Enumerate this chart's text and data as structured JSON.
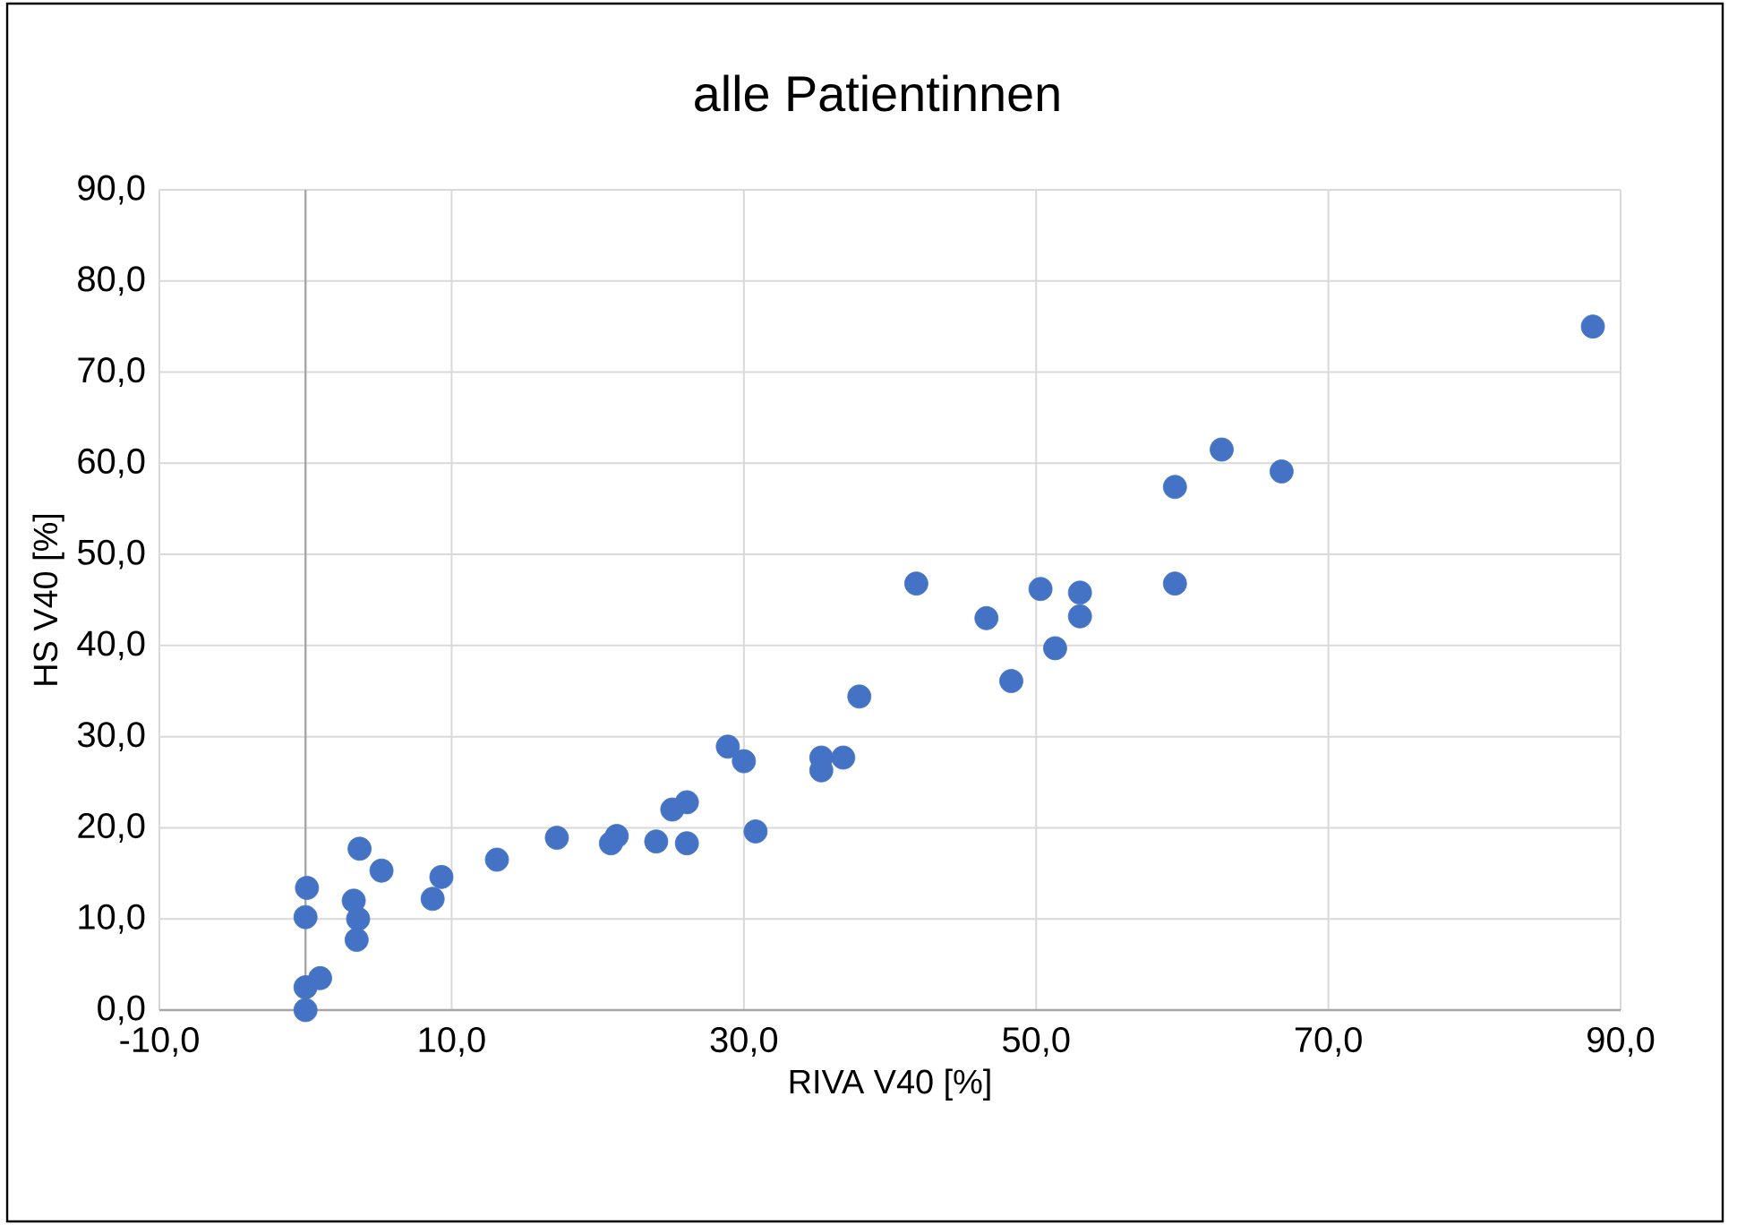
{
  "chart_data": {
    "type": "scatter",
    "title": "alle Patientinnen",
    "xlabel": "RIVA V40 [%]",
    "ylabel": "HS V40 [%]",
    "x": [
      0,
      0,
      1,
      0,
      0.1,
      3.3,
      3.6,
      3.5,
      3.7,
      5.2,
      8.7,
      9.3,
      13.1,
      17.2,
      20.9,
      21.3,
      24,
      25.1,
      26.1,
      26.1,
      28.9,
      30,
      30.8,
      35.3,
      35.3,
      36.8,
      37.9,
      41.8,
      46.6,
      48.3,
      50.3,
      51.3,
      53,
      53,
      59.5,
      59.5,
      62.7,
      66.8,
      88.1
    ],
    "values": [
      0,
      2.5,
      3.5,
      10.2,
      13.4,
      12,
      10,
      7.7,
      17.7,
      15.3,
      12.2,
      14.6,
      16.5,
      18.9,
      18.3,
      19.1,
      18.5,
      22,
      22.8,
      18.3,
      28.9,
      27.3,
      19.6,
      27.7,
      26.3,
      27.7,
      34.4,
      46.8,
      43,
      36.1,
      46.2,
      39.7,
      45.8,
      43.2,
      46.8,
      57.4,
      61.5,
      59.1,
      75
    ],
    "color": "#4472c4",
    "grid": true,
    "xlim": [
      -10,
      90
    ],
    "ylim": [
      0,
      90
    ],
    "xticks": [
      {
        "value": -10,
        "label": "-10,0"
      },
      {
        "value": 10,
        "label": "10,0"
      },
      {
        "value": 30,
        "label": "30,0"
      },
      {
        "value": 50,
        "label": "50,0"
      },
      {
        "value": 70,
        "label": "70,0"
      },
      {
        "value": 90,
        "label": "90,0"
      }
    ],
    "yticks": [
      {
        "value": 0,
        "label": "0,0"
      },
      {
        "value": 10,
        "label": "10,0"
      },
      {
        "value": 20,
        "label": "20,0"
      },
      {
        "value": 30,
        "label": "30,0"
      },
      {
        "value": 40,
        "label": "40,0"
      },
      {
        "value": 50,
        "label": "50,0"
      },
      {
        "value": 60,
        "label": "60,0"
      },
      {
        "value": 70,
        "label": "70,0"
      },
      {
        "value": 80,
        "label": "80,0"
      },
      {
        "value": 90,
        "label": "90,0"
      }
    ]
  }
}
